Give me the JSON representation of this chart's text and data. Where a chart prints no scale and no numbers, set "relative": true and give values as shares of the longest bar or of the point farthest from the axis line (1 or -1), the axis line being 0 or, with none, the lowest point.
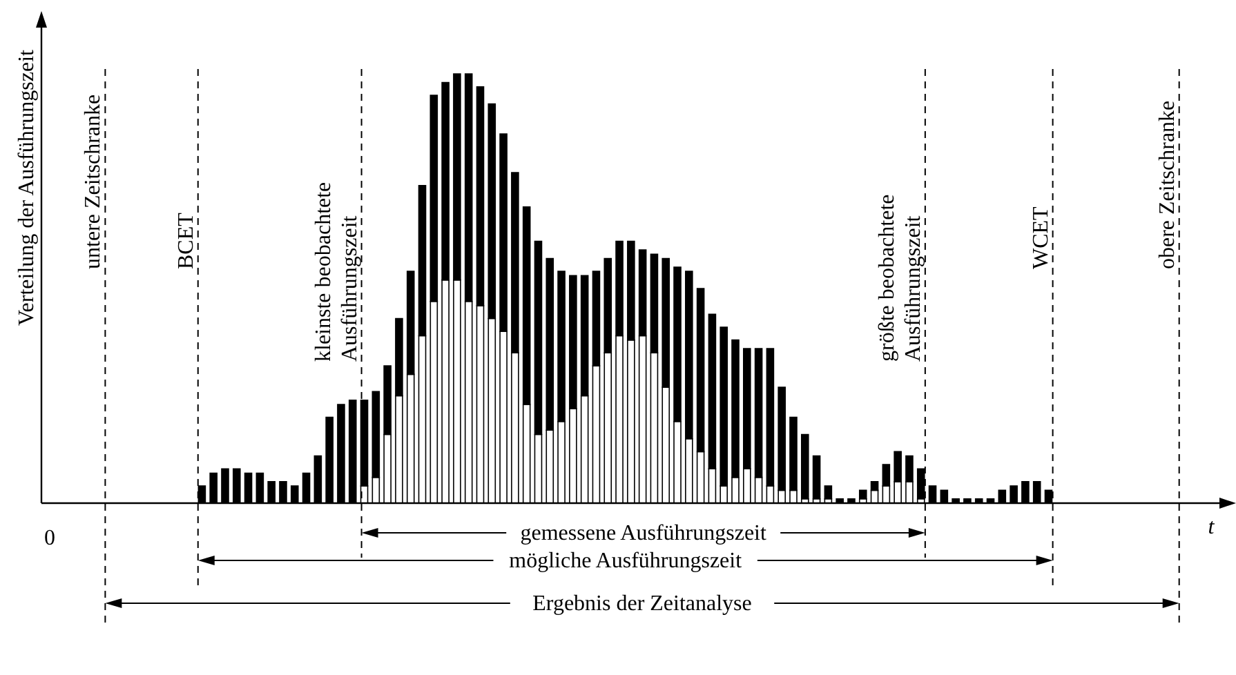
{
  "chart_data": {
    "type": "bar",
    "stacked": true,
    "relative": true,
    "annotations": [
      "0",
      "untere Zeitschranke",
      "BCET",
      "kleinste beobachtete Ausführungszeit",
      "größte beobachtete Ausführungszeit",
      "WCET",
      "obere Zeitschranke",
      "gemessene Ausführungszeit",
      "mögliche Ausführungszeit",
      "Ergebnis der Zeitanalyse",
      "Verteilung der Ausführungszeit",
      "t"
    ],
    "categories": [
      null,
      null,
      null,
      null,
      null,
      null,
      null,
      null,
      null,
      null,
      null,
      null,
      null,
      null,
      null,
      null,
      null,
      null,
      null,
      null,
      null,
      null,
      null,
      null,
      null,
      null,
      null,
      null,
      null,
      null,
      null,
      null,
      null,
      null,
      null,
      null,
      null,
      null,
      null,
      null,
      null,
      null,
      null,
      null,
      null,
      null,
      null,
      null,
      null,
      null,
      null,
      null,
      null,
      null,
      null,
      null,
      null,
      null,
      null,
      null,
      null,
      null,
      null,
      null,
      null,
      null,
      null,
      null,
      null,
      null,
      null,
      null,
      null,
      null
    ],
    "series": [
      {
        "color": "#ffffff",
        "values": [
          null,
          null,
          null,
          null,
          null,
          null,
          null,
          null,
          null,
          null,
          null,
          null,
          null,
          null,
          0.04,
          0.06,
          0.16,
          0.25,
          0.3,
          0.39,
          0.47,
          0.52,
          0.52,
          0.47,
          0.46,
          0.43,
          0.4,
          0.35,
          0.23,
          0.16,
          0.17,
          0.19,
          0.22,
          0.25,
          0.32,
          0.35,
          0.39,
          0.38,
          0.39,
          0.35,
          0.27,
          0.19,
          0.15,
          0.12,
          0.08,
          0.04,
          0.06,
          0.08,
          0.06,
          0.04,
          0.03,
          0.03,
          0.01,
          0.01,
          0.01,
          null,
          null,
          0.01,
          0.03,
          0.04,
          0.05,
          0.05,
          0.01,
          null,
          null,
          null,
          null,
          null,
          null,
          null,
          null,
          null,
          null,
          null
        ]
      },
      {
        "color": "#000000",
        "values": [
          0.04,
          0.07,
          0.08,
          0.08,
          0.07,
          0.07,
          0.05,
          0.05,
          0.04,
          0.07,
          0.11,
          0.2,
          0.23,
          0.24,
          0.2,
          0.2,
          0.16,
          0.18,
          0.24,
          0.35,
          0.48,
          0.46,
          0.48,
          0.53,
          0.51,
          0.5,
          0.46,
          0.42,
          0.46,
          0.45,
          0.4,
          0.35,
          0.31,
          0.28,
          0.22,
          0.22,
          0.22,
          0.23,
          0.2,
          0.23,
          0.3,
          0.36,
          0.39,
          0.38,
          0.36,
          0.37,
          0.32,
          0.28,
          0.3,
          0.32,
          0.24,
          0.17,
          0.15,
          0.1,
          0.03,
          0.01,
          0.01,
          0.02,
          0.02,
          0.05,
          0.07,
          0.06,
          0.07,
          0.04,
          0.03,
          0.01,
          0.01,
          0.01,
          0.01,
          0.03,
          0.04,
          0.05,
          0.05,
          0.03
        ]
      }
    ],
    "orientation": "vertical"
  }
}
